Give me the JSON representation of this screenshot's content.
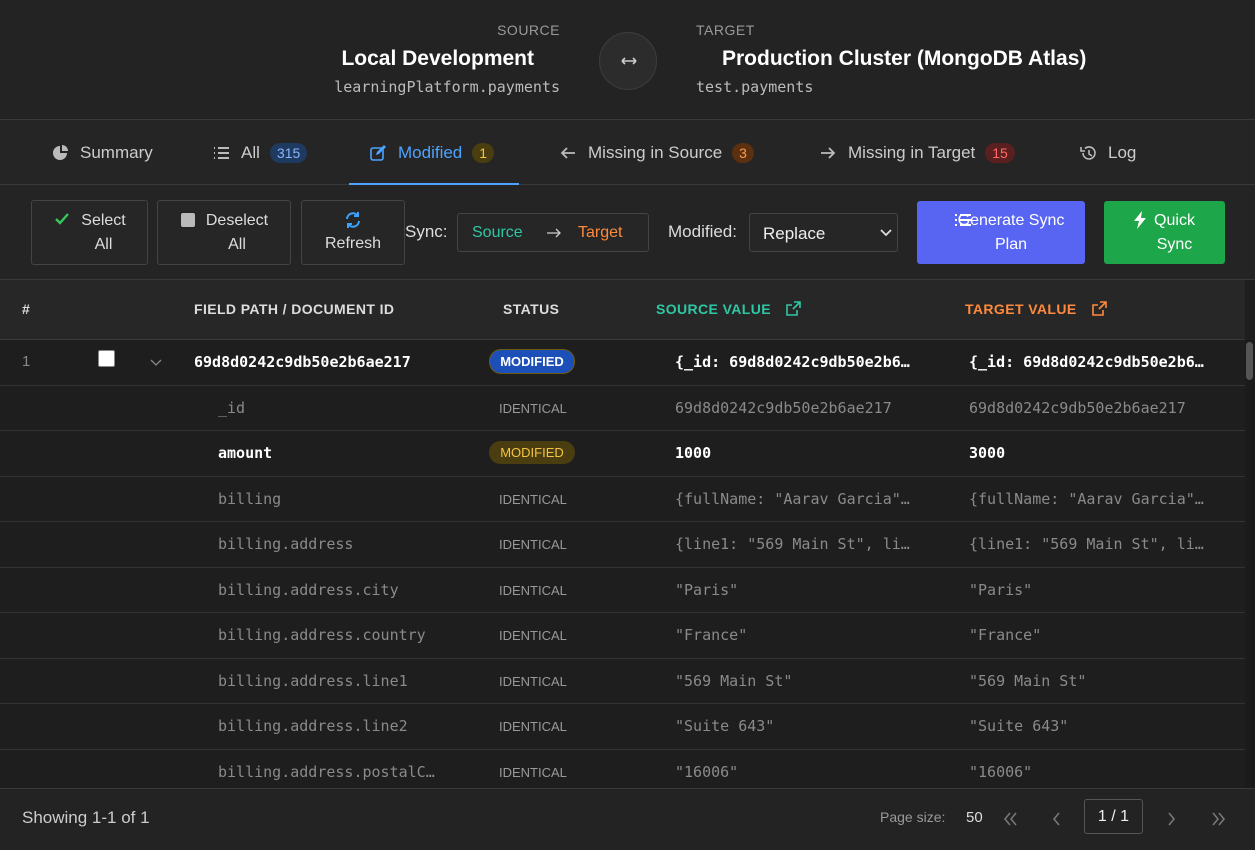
{
  "header": {
    "source": {
      "label": "SOURCE",
      "name": "Local Development",
      "namespace": "learningPlatform.payments"
    },
    "target": {
      "label": "TARGET",
      "name": "Production Cluster (MongoDB Atlas)",
      "namespace": "test.payments"
    }
  },
  "tabs": [
    {
      "label": "Summary"
    },
    {
      "label": "All",
      "count": "315"
    },
    {
      "label": "Modified",
      "count": "1"
    },
    {
      "label": "Missing in Source",
      "count": "3"
    },
    {
      "label": "Missing in Target",
      "count": "15"
    },
    {
      "label": "Log"
    }
  ],
  "toolbar": {
    "select_all": "Select All",
    "deselect_all": "Deselect All",
    "refresh": "Refresh",
    "sync_label": "Sync:",
    "sync_from": "Source",
    "sync_to": "Target",
    "modified_label": "Modified:",
    "modified_option": "Replace",
    "generate": "Generate Sync Plan",
    "quick_sync": "Quick Sync"
  },
  "table": {
    "columns": [
      "#",
      "FIELD PATH / DOCUMENT ID",
      "STATUS",
      "SOURCE VALUE",
      "TARGET VALUE"
    ],
    "document": {
      "index": "1",
      "id": "69d8d0242c9db50e2b6ae217",
      "status": "MODIFIED",
      "source": "{_id: 69d8d0242c9db50e2b6…",
      "target": "{_id: 69d8d0242c9db50e2b6…"
    },
    "rows": [
      {
        "field": "_id",
        "status": "IDENTICAL",
        "source": "69d8d0242c9db50e2b6ae217",
        "target": "69d8d0242c9db50e2b6ae217"
      },
      {
        "field": "amount",
        "status": "MODIFIED",
        "source": "1000",
        "target": "3000"
      },
      {
        "field": "billing",
        "status": "IDENTICAL",
        "source": "{fullName: \"Aarav Garcia\"…",
        "target": "{fullName: \"Aarav Garcia\"…"
      },
      {
        "field": "billing.address",
        "status": "IDENTICAL",
        "source": "{line1: \"569 Main St\", li…",
        "target": "{line1: \"569 Main St\", li…"
      },
      {
        "field": "billing.address.city",
        "status": "IDENTICAL",
        "source": "\"Paris\"",
        "target": "\"Paris\""
      },
      {
        "field": "billing.address.country",
        "status": "IDENTICAL",
        "source": "\"France\"",
        "target": "\"France\""
      },
      {
        "field": "billing.address.line1",
        "status": "IDENTICAL",
        "source": "\"569 Main St\"",
        "target": "\"569 Main St\""
      },
      {
        "field": "billing.address.line2",
        "status": "IDENTICAL",
        "source": "\"Suite 643\"",
        "target": "\"Suite 643\""
      },
      {
        "field": "billing.address.postalC…",
        "status": "IDENTICAL",
        "source": "\"16006\"",
        "target": "\"16006\""
      }
    ]
  },
  "footer": {
    "showing": "Showing 1-1 of 1",
    "page_size_label": "Page size:",
    "page_size": "50",
    "page": "1 / 1"
  }
}
